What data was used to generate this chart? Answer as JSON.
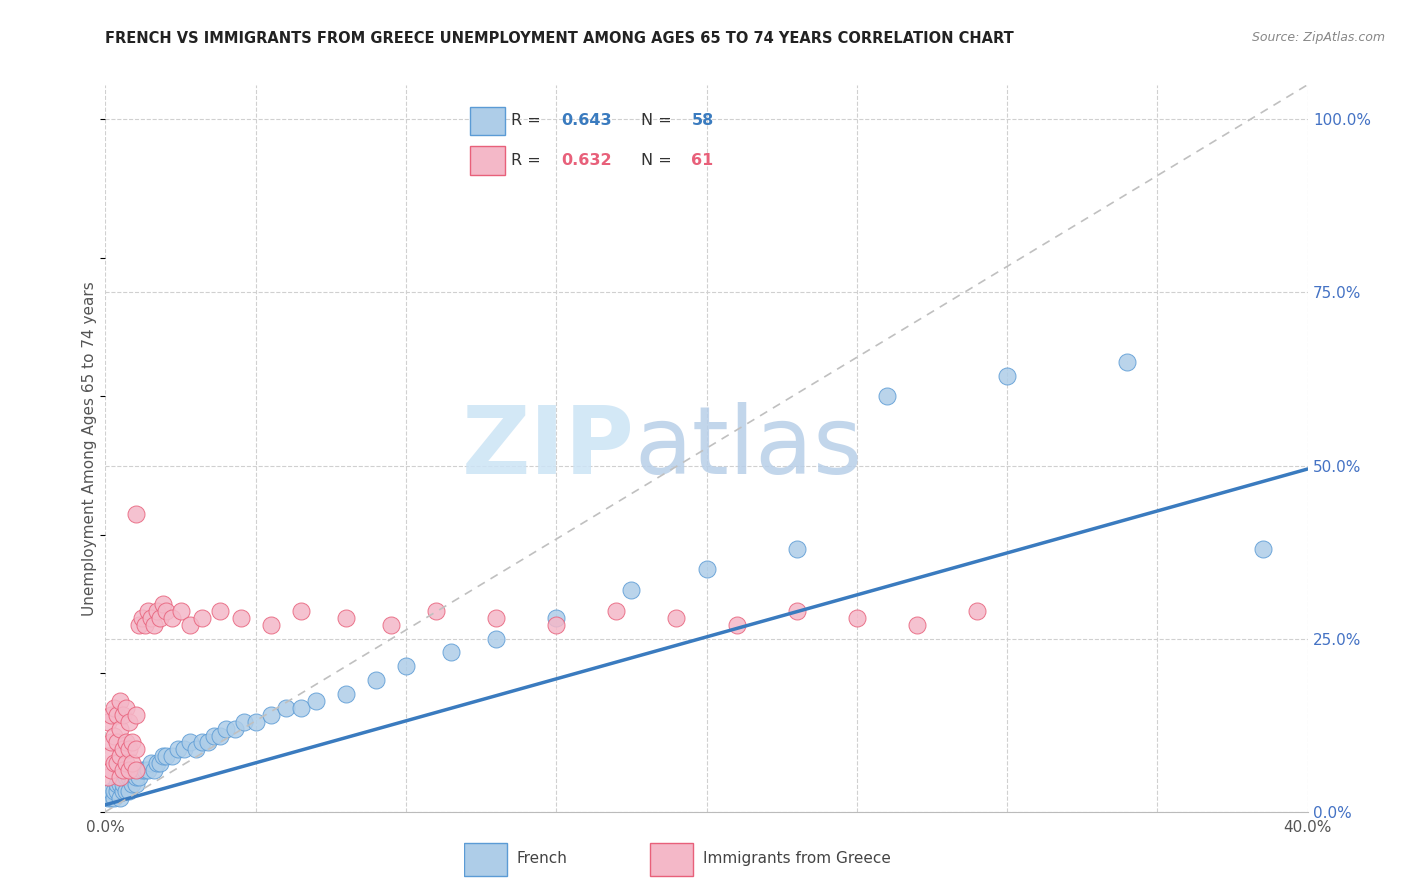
{
  "title": "FRENCH VS IMMIGRANTS FROM GREECE UNEMPLOYMENT AMONG AGES 65 TO 74 YEARS CORRELATION CHART",
  "source": "Source: ZipAtlas.com",
  "ylabel": "Unemployment Among Ages 65 to 74 years",
  "legend_french_R": "0.643",
  "legend_french_N": "58",
  "legend_greece_R": "0.632",
  "legend_greece_N": "61",
  "french_fill_color": "#aecde8",
  "french_edge_color": "#5b9bd5",
  "greece_fill_color": "#f4b8c8",
  "greece_edge_color": "#e8607a",
  "french_line_color": "#3a7bbf",
  "greece_line_color": "#c0c0c0",
  "watermark_zip_color": "#cce4f5",
  "watermark_atlas_color": "#b8cfe8",
  "french_x": [
    0.001,
    0.002,
    0.002,
    0.003,
    0.003,
    0.004,
    0.004,
    0.005,
    0.005,
    0.006,
    0.006,
    0.007,
    0.007,
    0.008,
    0.008,
    0.009,
    0.01,
    0.01,
    0.011,
    0.012,
    0.013,
    0.014,
    0.015,
    0.016,
    0.017,
    0.018,
    0.019,
    0.02,
    0.022,
    0.024,
    0.026,
    0.028,
    0.03,
    0.032,
    0.034,
    0.036,
    0.038,
    0.04,
    0.043,
    0.046,
    0.05,
    0.055,
    0.06,
    0.065,
    0.07,
    0.08,
    0.09,
    0.1,
    0.115,
    0.13,
    0.15,
    0.175,
    0.2,
    0.23,
    0.26,
    0.3,
    0.34,
    0.385
  ],
  "french_y": [
    0.02,
    0.02,
    0.03,
    0.02,
    0.03,
    0.03,
    0.04,
    0.02,
    0.04,
    0.03,
    0.04,
    0.03,
    0.05,
    0.03,
    0.05,
    0.04,
    0.04,
    0.05,
    0.05,
    0.06,
    0.06,
    0.06,
    0.07,
    0.06,
    0.07,
    0.07,
    0.08,
    0.08,
    0.08,
    0.09,
    0.09,
    0.1,
    0.09,
    0.1,
    0.1,
    0.11,
    0.11,
    0.12,
    0.12,
    0.13,
    0.13,
    0.14,
    0.15,
    0.15,
    0.16,
    0.17,
    0.19,
    0.21,
    0.23,
    0.25,
    0.28,
    0.32,
    0.35,
    0.38,
    0.6,
    0.63,
    0.65,
    0.38
  ],
  "greece_x": [
    0.001,
    0.001,
    0.001,
    0.002,
    0.002,
    0.002,
    0.003,
    0.003,
    0.003,
    0.004,
    0.004,
    0.004,
    0.005,
    0.005,
    0.005,
    0.005,
    0.006,
    0.006,
    0.006,
    0.007,
    0.007,
    0.007,
    0.008,
    0.008,
    0.008,
    0.009,
    0.009,
    0.01,
    0.01,
    0.01,
    0.011,
    0.012,
    0.013,
    0.014,
    0.015,
    0.016,
    0.017,
    0.018,
    0.019,
    0.02,
    0.022,
    0.025,
    0.028,
    0.032,
    0.038,
    0.045,
    0.055,
    0.065,
    0.08,
    0.095,
    0.11,
    0.13,
    0.15,
    0.17,
    0.19,
    0.21,
    0.23,
    0.25,
    0.27,
    0.29,
    0.01
  ],
  "greece_y": [
    0.05,
    0.08,
    0.13,
    0.06,
    0.1,
    0.14,
    0.07,
    0.11,
    0.15,
    0.07,
    0.1,
    0.14,
    0.05,
    0.08,
    0.12,
    0.16,
    0.06,
    0.09,
    0.14,
    0.07,
    0.1,
    0.15,
    0.06,
    0.09,
    0.13,
    0.07,
    0.1,
    0.06,
    0.09,
    0.14,
    0.27,
    0.28,
    0.27,
    0.29,
    0.28,
    0.27,
    0.29,
    0.28,
    0.3,
    0.29,
    0.28,
    0.29,
    0.27,
    0.28,
    0.29,
    0.28,
    0.27,
    0.29,
    0.28,
    0.27,
    0.29,
    0.28,
    0.27,
    0.29,
    0.28,
    0.27,
    0.29,
    0.28,
    0.27,
    0.29,
    0.43
  ],
  "french_line_x0": 0.0,
  "french_line_x1": 0.4,
  "french_line_y0": 0.01,
  "french_line_y1": 0.495,
  "greece_line_x0": 0.0,
  "greece_line_x1": 0.4,
  "greece_line_y0": 0.0,
  "greece_line_y1": 1.05,
  "xmin": 0.0,
  "xmax": 0.4,
  "ymin": 0.0,
  "ymax": 1.05,
  "yticks": [
    0.0,
    0.25,
    0.5,
    0.75,
    1.0
  ],
  "ytick_labels": [
    "0.0%",
    "25.0%",
    "50.0%",
    "75.0%",
    "100.0%"
  ]
}
